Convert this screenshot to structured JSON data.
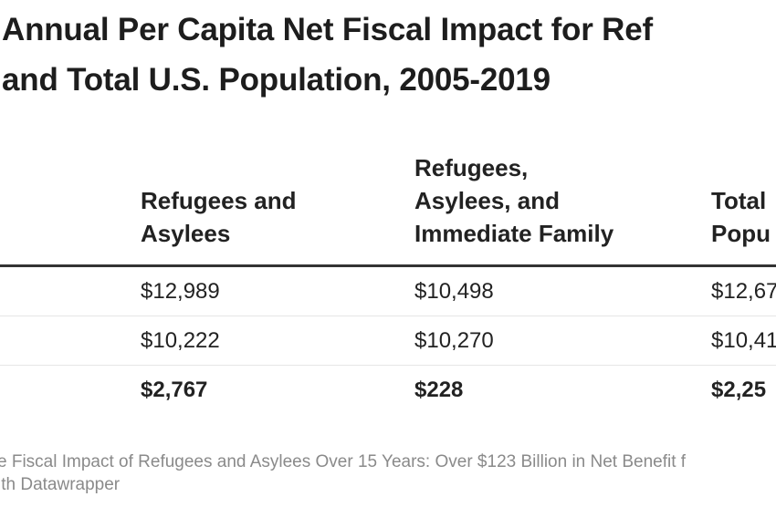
{
  "title": {
    "line1": "Annual Per Capita Net Fiscal Impact for Ref",
    "line2": "and Total U.S. Population, 2005-2019"
  },
  "table": {
    "columns": [
      {
        "lines": [
          "Refugees and",
          "Asylees"
        ]
      },
      {
        "lines": [
          "Refugees,",
          "Asylees, and",
          "Immediate Family"
        ]
      },
      {
        "lines": [
          "Total",
          "Popu"
        ]
      }
    ],
    "rows": [
      {
        "cells": [
          "$12,989",
          "$10,498",
          "$12,67"
        ],
        "bold": false
      },
      {
        "cells": [
          "$10,222",
          "$10,270",
          "$10,41"
        ],
        "bold": false
      },
      {
        "cells": [
          "$2,767",
          "$228",
          "$2,25"
        ],
        "bold": true
      }
    ]
  },
  "footer": {
    "source": "e Fiscal Impact of Refugees and Asylees Over 15 Years: Over $123 Billion in Net Benefit f",
    "credit": "ith Datawrapper"
  },
  "colors": {
    "text": "#1d1d1d",
    "rule": "#333333",
    "divider": "#e6e6e6",
    "footer": "#8a8a8a"
  }
}
